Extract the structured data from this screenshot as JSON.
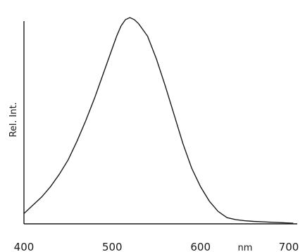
{
  "chart_data": {
    "type": "line",
    "title": "",
    "xlabel": "nm",
    "ylabel": "Rel. Int.",
    "x_ticks": [
      "400",
      "500",
      "600",
      "700"
    ],
    "xlim": [
      400,
      710
    ],
    "ylim": [
      0,
      1.0
    ],
    "grid": false,
    "series": [
      {
        "x": [
          400,
          410,
          420,
          430,
          440,
          450,
          460,
          470,
          480,
          490,
          500,
          505,
          510,
          515,
          520,
          525,
          530,
          540,
          550,
          560,
          570,
          580,
          590,
          600,
          610,
          620,
          630,
          640,
          650,
          660,
          670,
          680,
          690,
          700,
          705
        ],
        "values": [
          0.05,
          0.09,
          0.13,
          0.18,
          0.24,
          0.31,
          0.4,
          0.5,
          0.61,
          0.73,
          0.85,
          0.91,
          0.96,
          0.99,
          1.0,
          0.99,
          0.97,
          0.91,
          0.8,
          0.67,
          0.53,
          0.39,
          0.27,
          0.18,
          0.11,
          0.06,
          0.03,
          0.02,
          0.015,
          0.012,
          0.01,
          0.008,
          0.006,
          0.004,
          0.003
        ]
      }
    ]
  }
}
